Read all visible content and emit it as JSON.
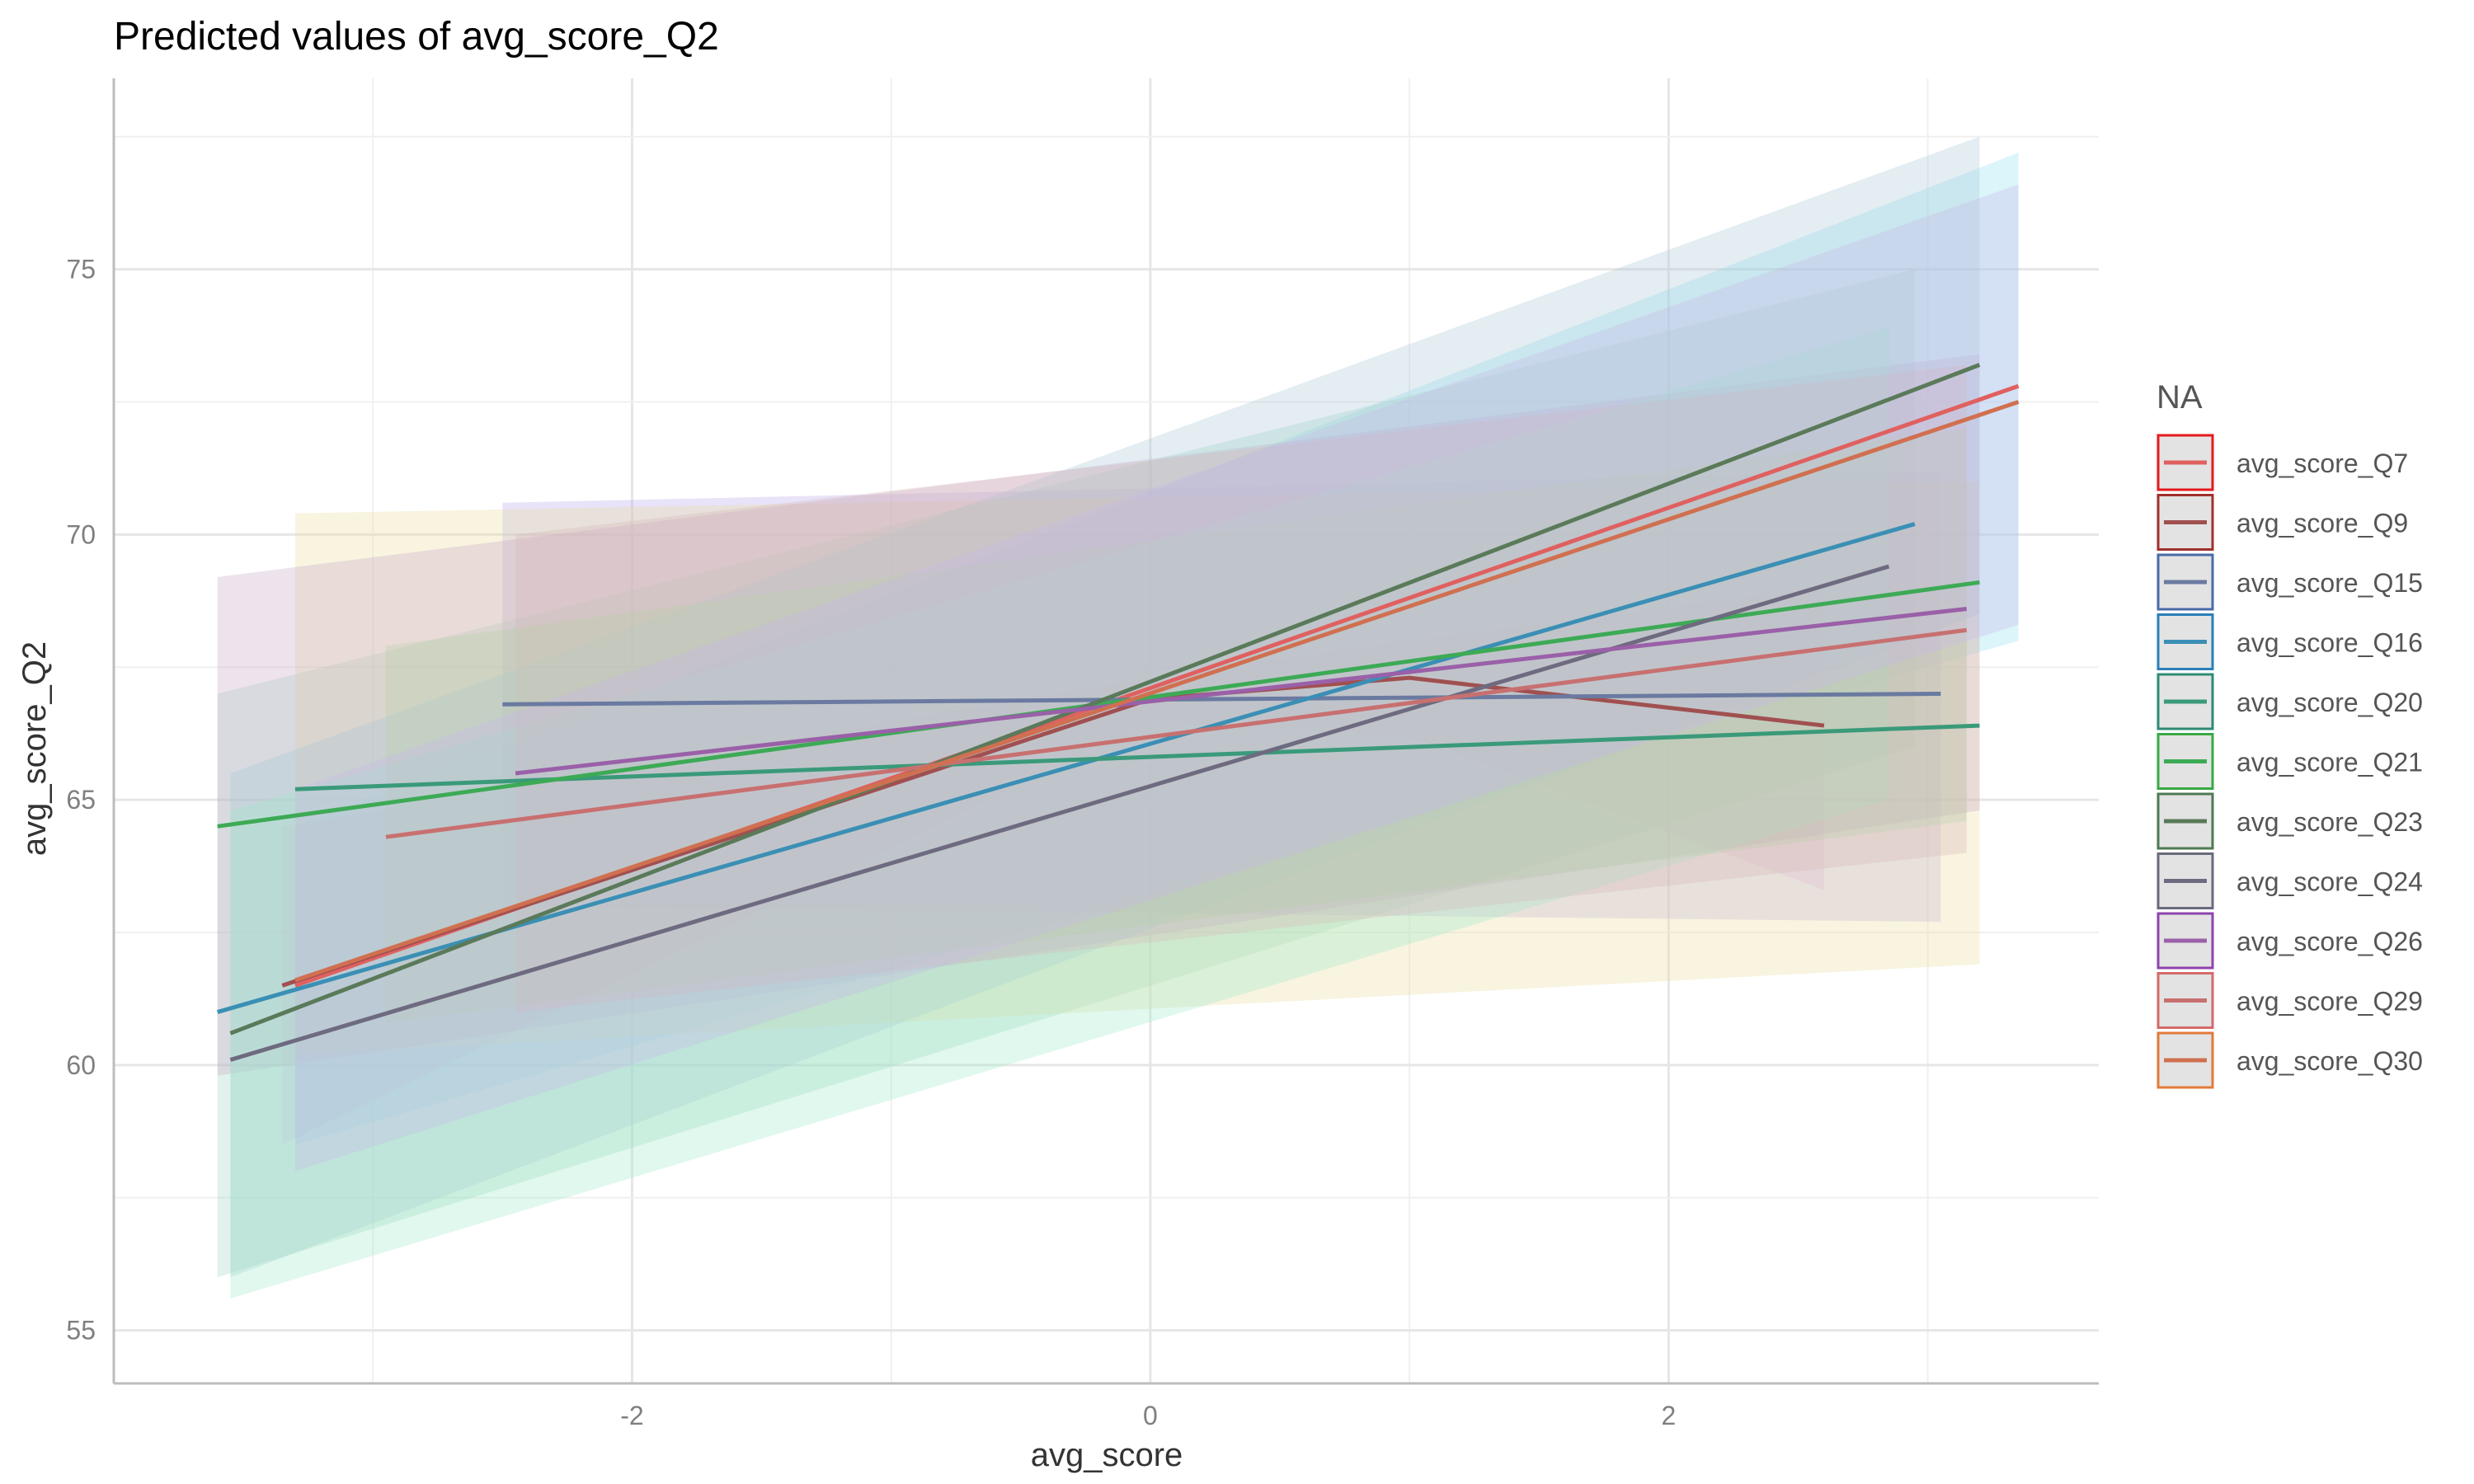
{
  "chart_data": {
    "type": "line",
    "title": "Predicted values of avg_score_Q2",
    "xlabel": "avg_score",
    "ylabel": "avg_score_Q2",
    "xlim": [
      -4.0,
      3.66
    ],
    "ylim": [
      54.0,
      78.6
    ],
    "x_ticks": [
      -2,
      0,
      2
    ],
    "x_tick_labels": [
      "-2",
      "0",
      "2"
    ],
    "y_ticks": [
      55,
      60,
      65,
      70,
      75
    ],
    "y_tick_labels": [
      "55",
      "60",
      "65",
      "70",
      "75"
    ],
    "grid": true,
    "legend": {
      "title": "NA",
      "position": "right"
    },
    "series": [
      {
        "name": "avg_score_Q7",
        "color": "#E41A1C",
        "line_color": "#E06060",
        "x": [
          -3.3,
          3.35
        ],
        "y": [
          61.5,
          72.8
        ],
        "lower": [
          58.5,
          68.0
        ],
        "upper": [
          64.5,
          77.2
        ]
      },
      {
        "name": "avg_score_Q9",
        "color": "#A0302E",
        "line_color": "#A05050",
        "x": [
          -3.35,
          0.0,
          1.0,
          2.6
        ],
        "y": [
          61.5,
          66.9,
          67.3,
          66.4
        ],
        "lower": [
          58.5,
          66.5,
          66.2,
          63.3
        ],
        "upper": [
          64.5,
          67.3,
          68.0,
          69.0
        ]
      },
      {
        "name": "avg_score_Q15",
        "color": "#4A6AA8",
        "line_color": "#6A7AA0",
        "x": [
          -2.5,
          3.05
        ],
        "y": [
          66.8,
          67.0
        ],
        "lower": [
          63.0,
          62.7
        ],
        "upper": [
          70.6,
          71.2
        ]
      },
      {
        "name": "avg_score_Q16",
        "color": "#2B7FB8",
        "line_color": "#3B8FB5",
        "x": [
          -3.6,
          2.95
        ],
        "y": [
          61.0,
          70.2
        ],
        "lower": [
          56.0,
          66.0
        ],
        "upper": [
          67.0,
          75.0
        ]
      },
      {
        "name": "avg_score_Q20",
        "color": "#2E8B74",
        "line_color": "#3A9A7A",
        "x": [
          -3.3,
          3.2
        ],
        "y": [
          65.2,
          66.4
        ],
        "lower": [
          60.2,
          61.9
        ],
        "upper": [
          70.4,
          71.0
        ]
      },
      {
        "name": "avg_score_Q21",
        "color": "#3AA845",
        "line_color": "#3DAA55",
        "x": [
          -3.6,
          3.2
        ],
        "y": [
          64.5,
          69.1
        ],
        "lower": [
          59.8,
          64.8
        ],
        "upper": [
          69.2,
          73.4
        ]
      },
      {
        "name": "avg_score_Q23",
        "color": "#4E7A52",
        "line_color": "#5A7A5A",
        "x": [
          -3.55,
          3.2
        ],
        "y": [
          60.6,
          73.2
        ],
        "lower": [
          56.0,
          68.5
        ],
        "upper": [
          65.5,
          77.5
        ]
      },
      {
        "name": "avg_score_Q24",
        "color": "#6A6A7E",
        "line_color": "#6E6A80",
        "x": [
          -3.55,
          2.85
        ],
        "y": [
          60.1,
          69.4
        ],
        "lower": [
          55.6,
          65.0
        ],
        "upper": [
          64.8,
          73.9
        ]
      },
      {
        "name": "avg_score_Q26",
        "color": "#8E44AD",
        "line_color": "#9A60A8",
        "x": [
          -2.45,
          3.15
        ],
        "y": [
          65.5,
          68.6
        ],
        "lower": [
          61.0,
          64.0
        ],
        "upper": [
          70.0,
          73.2
        ]
      },
      {
        "name": "avg_score_Q29",
        "color": "#D46A6A",
        "line_color": "#C87070",
        "x": [
          -2.95,
          3.15
        ],
        "y": [
          64.3,
          68.2
        ],
        "lower": [
          60.8,
          64.6
        ],
        "upper": [
          67.9,
          72.0
        ]
      },
      {
        "name": "avg_score_Q30",
        "color": "#E07B39",
        "line_color": "#D07050",
        "x": [
          -3.3,
          3.35
        ],
        "y": [
          61.6,
          72.5
        ],
        "lower": [
          58.0,
          68.3
        ],
        "upper": [
          65.2,
          76.6
        ]
      }
    ],
    "band_fills": [
      "#8EDFEF",
      "#F0B0F0",
      "#B8A8E8",
      "#A0D8C0",
      "#E8DCA0",
      "#C8A8C8",
      "#A8C8D8",
      "#9EE8C8",
      "#D8B8B8",
      "#B8D0A8",
      "#C8B8E8"
    ]
  }
}
